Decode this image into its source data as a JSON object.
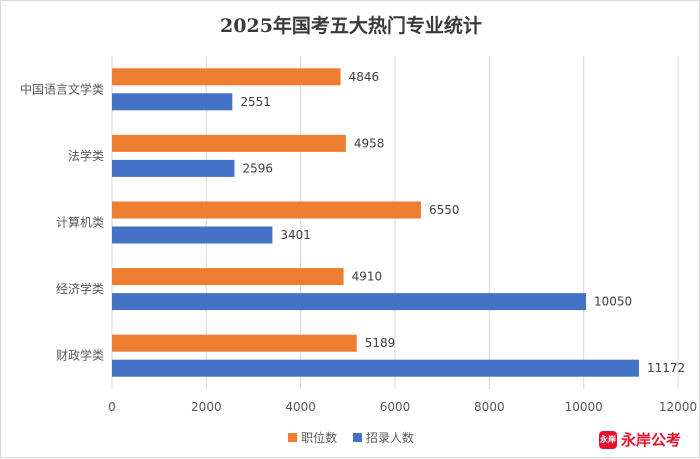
{
  "chart_data": {
    "type": "bar",
    "orientation": "horizontal",
    "title": "2025年国考五大热门专业统计",
    "categories": [
      "中国语言文学类",
      "法学类",
      "计算机类",
      "经济学类",
      "财政学类"
    ],
    "series": [
      {
        "name": "职位数",
        "color": "#ed7d31",
        "values": [
          4846,
          4958,
          6550,
          4910,
          5189
        ]
      },
      {
        "name": "招录人数",
        "color": "#4472c4",
        "values": [
          2551,
          2596,
          3401,
          10050,
          11172
        ]
      }
    ],
    "xlim": [
      0,
      12000
    ],
    "xticks": [
      0,
      2000,
      4000,
      6000,
      8000,
      10000,
      12000
    ],
    "grid": "vertical",
    "legend_position": "bottom"
  },
  "watermark": {
    "badge": "永岸",
    "text": "永岸公考"
  }
}
